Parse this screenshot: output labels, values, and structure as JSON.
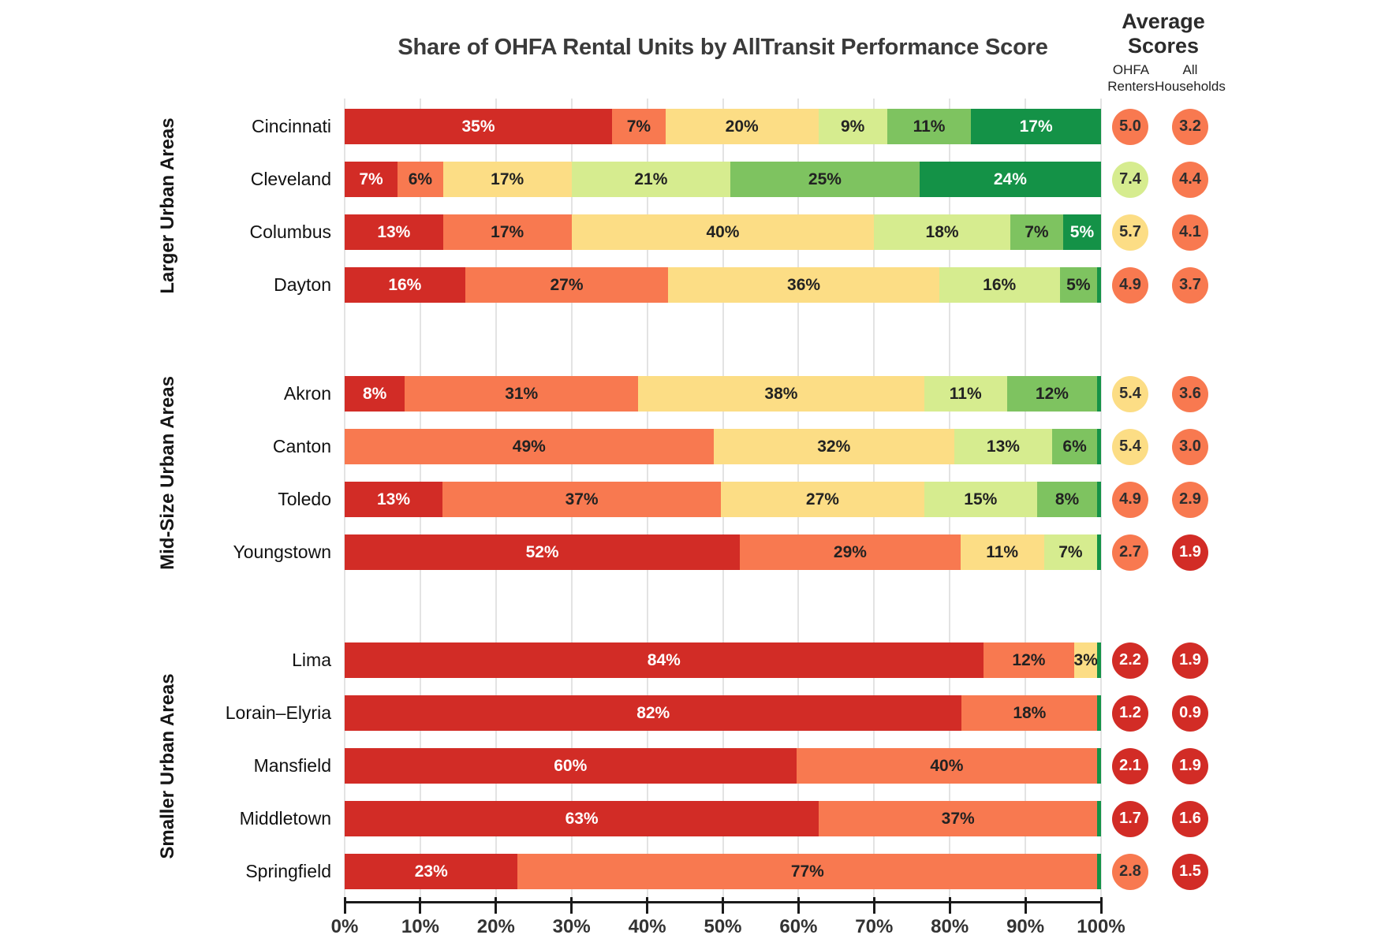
{
  "title": "Share of OHFA Rental Units by AllTransit Performance Score",
  "average_scores": {
    "title": "Average Scores",
    "columns": [
      {
        "id": "renters",
        "label": "OHFA Renters"
      },
      {
        "id": "households",
        "label": "All Households"
      }
    ]
  },
  "x_axis": {
    "tick_labels": [
      "0%",
      "10%",
      "20%",
      "30%",
      "40%",
      "50%",
      "60%",
      "70%",
      "80%",
      "90%",
      "100%"
    ]
  },
  "colors": {
    "red": "#d22c26",
    "orange": "#f87950",
    "yellow": "#fcdd85",
    "lightgreen": "#d6ec8f",
    "medgreen": "#7ec360",
    "darkgreen": "#149247",
    "label_dark": "#222222",
    "label_light": "#ffffff",
    "grid": "#e3e3e3",
    "axis": "#1a1a1a"
  },
  "chart_data": {
    "type": "bar",
    "stacked": true,
    "orientation": "horizontal",
    "unit": "percent",
    "x_range": [
      0,
      100
    ],
    "grid": true,
    "title": "Share of OHFA Rental Units by AllTransit Performance Score",
    "groups": [
      {
        "label": "Larger Urban Areas",
        "rows": [
          {
            "city": "Cincinnati",
            "segments": [
              {
                "value": 35,
                "label": "35%",
                "band": "red"
              },
              {
                "value": 7,
                "label": "7%",
                "band": "orange"
              },
              {
                "value": 20,
                "label": "20%",
                "band": "yellow"
              },
              {
                "value": 9,
                "label": "9%",
                "band": "lightgreen"
              },
              {
                "value": 11,
                "label": "11%",
                "band": "medgreen"
              },
              {
                "value": 17,
                "label": "17%",
                "band": "darkgreen"
              }
            ],
            "avg": {
              "renters": {
                "value": "5.0",
                "band": "orange"
              },
              "households": {
                "value": "3.2",
                "band": "orange"
              }
            }
          },
          {
            "city": "Cleveland",
            "segments": [
              {
                "value": 7,
                "label": "7%",
                "band": "red"
              },
              {
                "value": 6,
                "label": "6%",
                "band": "orange"
              },
              {
                "value": 17,
                "label": "17%",
                "band": "yellow"
              },
              {
                "value": 21,
                "label": "21%",
                "band": "lightgreen"
              },
              {
                "value": 25,
                "label": "25%",
                "band": "medgreen"
              },
              {
                "value": 24,
                "label": "24%",
                "band": "darkgreen"
              }
            ],
            "avg": {
              "renters": {
                "value": "7.4",
                "band": "lightgreen"
              },
              "households": {
                "value": "4.4",
                "band": "orange"
              }
            }
          },
          {
            "city": "Columbus",
            "segments": [
              {
                "value": 13,
                "label": "13%",
                "band": "red"
              },
              {
                "value": 17,
                "label": "17%",
                "band": "orange"
              },
              {
                "value": 40,
                "label": "40%",
                "band": "yellow"
              },
              {
                "value": 18,
                "label": "18%",
                "band": "lightgreen"
              },
              {
                "value": 7,
                "label": "7%",
                "band": "medgreen"
              },
              {
                "value": 5,
                "label": "5%",
                "band": "darkgreen"
              }
            ],
            "avg": {
              "renters": {
                "value": "5.7",
                "band": "yellow"
              },
              "households": {
                "value": "4.1",
                "band": "orange"
              }
            }
          },
          {
            "city": "Dayton",
            "segments": [
              {
                "value": 16,
                "label": "16%",
                "band": "red"
              },
              {
                "value": 27,
                "label": "27%",
                "band": "orange"
              },
              {
                "value": 36,
                "label": "36%",
                "band": "yellow"
              },
              {
                "value": 16,
                "label": "16%",
                "band": "lightgreen"
              },
              {
                "value": 5,
                "label": "5%",
                "band": "medgreen"
              },
              {
                "value": 0.5,
                "label": "",
                "band": "darkgreen"
              }
            ],
            "avg": {
              "renters": {
                "value": "4.9",
                "band": "orange"
              },
              "households": {
                "value": "3.7",
                "band": "orange"
              }
            }
          }
        ]
      },
      {
        "label": "Mid-Size Urban Areas",
        "rows": [
          {
            "city": "Akron",
            "segments": [
              {
                "value": 8,
                "label": "8%",
                "band": "red"
              },
              {
                "value": 31,
                "label": "31%",
                "band": "orange"
              },
              {
                "value": 38,
                "label": "38%",
                "band": "yellow"
              },
              {
                "value": 11,
                "label": "11%",
                "band": "lightgreen"
              },
              {
                "value": 12,
                "label": "12%",
                "band": "medgreen"
              },
              {
                "value": 0.5,
                "label": "",
                "band": "darkgreen"
              }
            ],
            "avg": {
              "renters": {
                "value": "5.4",
                "band": "yellow"
              },
              "households": {
                "value": "3.6",
                "band": "orange"
              }
            }
          },
          {
            "city": "Canton",
            "segments": [
              {
                "value": 49,
                "label": "49%",
                "band": "orange"
              },
              {
                "value": 32,
                "label": "32%",
                "band": "yellow"
              },
              {
                "value": 13,
                "label": "13%",
                "band": "lightgreen"
              },
              {
                "value": 6,
                "label": "6%",
                "band": "medgreen"
              },
              {
                "value": 0.5,
                "label": "",
                "band": "darkgreen"
              }
            ],
            "avg": {
              "renters": {
                "value": "5.4",
                "band": "yellow"
              },
              "households": {
                "value": "3.0",
                "band": "orange"
              }
            }
          },
          {
            "city": "Toledo",
            "segments": [
              {
                "value": 13,
                "label": "13%",
                "band": "red"
              },
              {
                "value": 37,
                "label": "37%",
                "band": "orange"
              },
              {
                "value": 27,
                "label": "27%",
                "band": "yellow"
              },
              {
                "value": 15,
                "label": "15%",
                "band": "lightgreen"
              },
              {
                "value": 8,
                "label": "8%",
                "band": "medgreen"
              },
              {
                "value": 0.5,
                "label": "",
                "band": "darkgreen"
              }
            ],
            "avg": {
              "renters": {
                "value": "4.9",
                "band": "orange"
              },
              "households": {
                "value": "2.9",
                "band": "orange"
              }
            }
          },
          {
            "city": "Youngstown",
            "segments": [
              {
                "value": 52,
                "label": "52%",
                "band": "red"
              },
              {
                "value": 29,
                "label": "29%",
                "band": "orange"
              },
              {
                "value": 11,
                "label": "11%",
                "band": "yellow"
              },
              {
                "value": 7,
                "label": "7%",
                "band": "lightgreen"
              },
              {
                "value": 0.5,
                "label": "",
                "band": "darkgreen"
              }
            ],
            "avg": {
              "renters": {
                "value": "2.7",
                "band": "orange"
              },
              "households": {
                "value": "1.9",
                "band": "red"
              }
            }
          }
        ]
      },
      {
        "label": "Smaller Urban Areas",
        "rows": [
          {
            "city": "Lima",
            "segments": [
              {
                "value": 84,
                "label": "84%",
                "band": "red"
              },
              {
                "value": 12,
                "label": "12%",
                "band": "orange"
              },
              {
                "value": 3,
                "label": "3%",
                "band": "yellow"
              },
              {
                "value": 0.5,
                "label": "",
                "band": "darkgreen"
              }
            ],
            "avg": {
              "renters": {
                "value": "2.2",
                "band": "red"
              },
              "households": {
                "value": "1.9",
                "band": "red"
              }
            }
          },
          {
            "city": "Lorain–Elyria",
            "segments": [
              {
                "value": 82,
                "label": "82%",
                "band": "red"
              },
              {
                "value": 18,
                "label": "18%",
                "band": "orange"
              },
              {
                "value": 0.5,
                "label": "",
                "band": "darkgreen"
              }
            ],
            "avg": {
              "renters": {
                "value": "1.2",
                "band": "red"
              },
              "households": {
                "value": "0.9",
                "band": "red"
              }
            }
          },
          {
            "city": "Mansfield",
            "segments": [
              {
                "value": 60,
                "label": "60%",
                "band": "red"
              },
              {
                "value": 40,
                "label": "40%",
                "band": "orange"
              },
              {
                "value": 0.5,
                "label": "",
                "band": "darkgreen"
              }
            ],
            "avg": {
              "renters": {
                "value": "2.1",
                "band": "red"
              },
              "households": {
                "value": "1.9",
                "band": "red"
              }
            }
          },
          {
            "city": "Middletown",
            "segments": [
              {
                "value": 63,
                "label": "63%",
                "band": "red"
              },
              {
                "value": 37,
                "label": "37%",
                "band": "orange"
              },
              {
                "value": 0.5,
                "label": "",
                "band": "darkgreen"
              }
            ],
            "avg": {
              "renters": {
                "value": "1.7",
                "band": "red"
              },
              "households": {
                "value": "1.6",
                "band": "red"
              }
            }
          },
          {
            "city": "Springfield",
            "segments": [
              {
                "value": 23,
                "label": "23%",
                "band": "red"
              },
              {
                "value": 77,
                "label": "77%",
                "band": "orange"
              },
              {
                "value": 0.5,
                "label": "",
                "band": "darkgreen"
              }
            ],
            "avg": {
              "renters": {
                "value": "2.8",
                "band": "orange"
              },
              "households": {
                "value": "1.5",
                "band": "red"
              }
            }
          }
        ]
      }
    ]
  }
}
